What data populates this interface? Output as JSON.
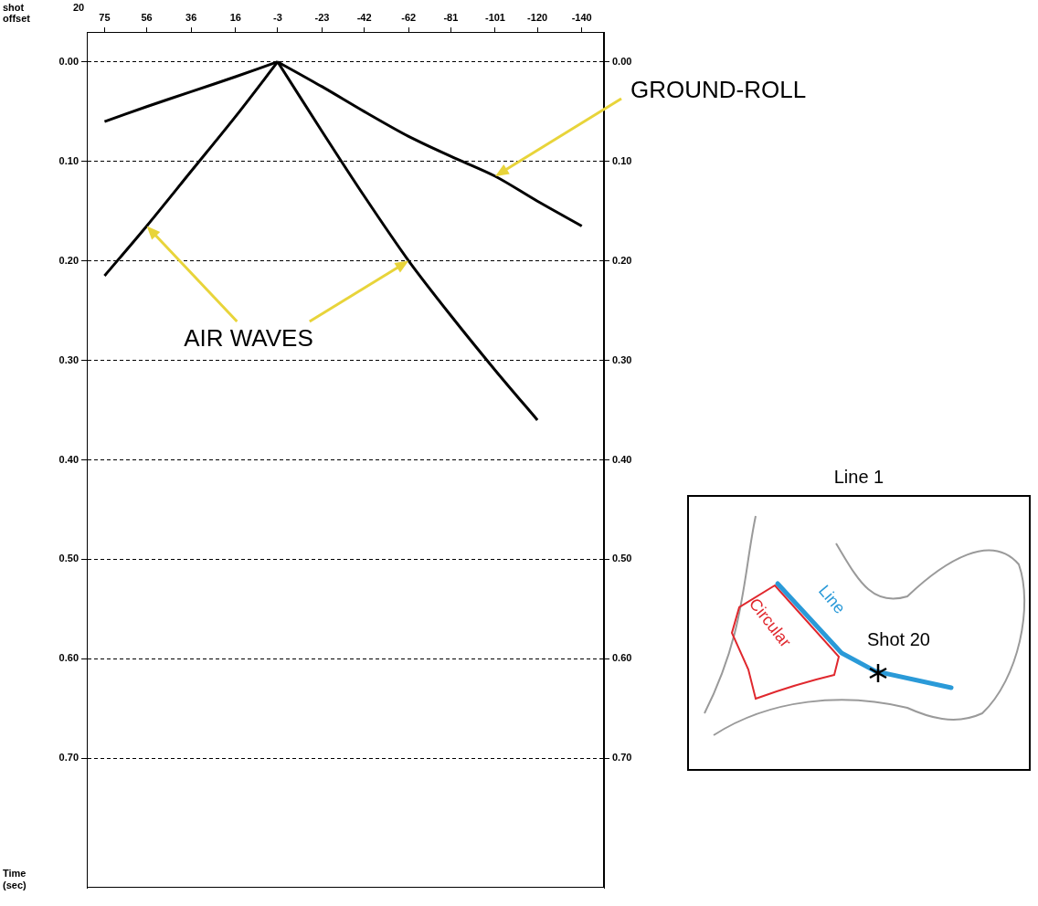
{
  "chart_data": {
    "type": "line",
    "shot_label": "shot",
    "shot": 20,
    "x_label": "offset",
    "y_label": "Time (sec)",
    "xlim": [
      83,
      -150
    ],
    "xticks": [
      75,
      56,
      36,
      16,
      -3,
      -23,
      -42,
      -62,
      -81,
      -101,
      -120,
      -140
    ],
    "ylim": [
      -0.03,
      0.83
    ],
    "yticks": [
      {
        "value": 0,
        "label": "0.00"
      },
      {
        "value": 0.1,
        "label": "0.10"
      },
      {
        "value": 0.2,
        "label": "0.20"
      },
      {
        "value": 0.3,
        "label": "0.30"
      },
      {
        "value": 0.4,
        "label": "0.40"
      },
      {
        "value": 0.5,
        "label": "0.50"
      },
      {
        "value": 0.6,
        "label": "0.60"
      },
      {
        "value": 0.7,
        "label": "0.70"
      }
    ],
    "grid": true,
    "series": [
      {
        "color": "#000000",
        "x": [
          -3,
          16,
          36,
          56,
          75
        ],
        "values": [
          0,
          0.055,
          0.11,
          0.165,
          0.215
        ]
      },
      {
        "color": "#000000",
        "x": [
          -3,
          -23,
          -42,
          -62,
          -81,
          -101,
          -120
        ],
        "values": [
          0,
          0.07,
          0.135,
          0.2,
          0.255,
          0.31,
          0.36
        ]
      },
      {
        "color": "#000000",
        "x": [
          -3,
          -23,
          -42,
          -62,
          -81,
          -101,
          -120,
          -140
        ],
        "values": [
          0,
          0.025,
          0.05,
          0.075,
          0.095,
          0.115,
          0.14,
          0.165
        ]
      },
      {
        "color": "#000000",
        "x": [
          -3,
          16,
          36,
          56,
          75
        ],
        "values": [
          0,
          0.015,
          0.03,
          0.045,
          0.06
        ]
      }
    ],
    "annotations": [
      {
        "text": "GROUND-ROLL",
        "color": "#e8d43a",
        "arrows": [
          [
            -101,
            0.115
          ]
        ]
      },
      {
        "text": "AIR WAVES",
        "color": "#e8d43a",
        "arrows": [
          [
            56,
            0.165
          ],
          [
            -62,
            0.2
          ]
        ]
      }
    ]
  },
  "inset": {
    "title": "Line 1",
    "circular": "Circular",
    "line": "Line",
    "shot": "Shot 20",
    "circular_color": "#e0282e",
    "line_color": "#2a9ad8"
  }
}
